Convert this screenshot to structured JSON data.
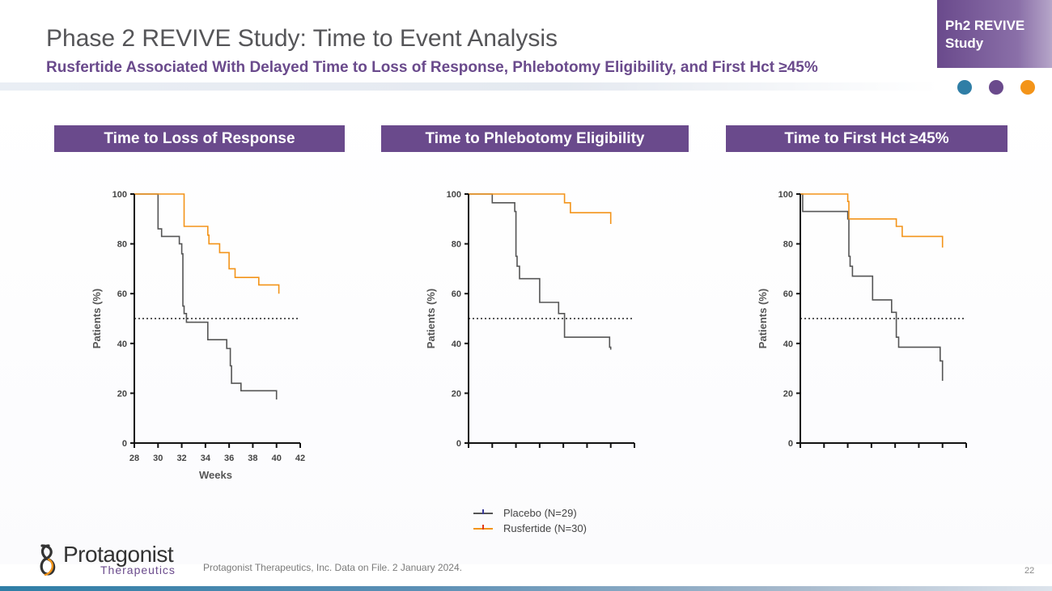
{
  "slide": {
    "title": "Phase 2 REVIVE Study: Time to Event Analysis",
    "subtitle": "Rusfertide Associated With Delayed Time to Loss of Response, Phlebotomy Eligibility, and First Hct ≥45%",
    "tag": "Ph2 REVIVE Study",
    "footnote": "Protagonist Therapeutics, Inc. Data on File. 2 January 2024.",
    "page_number": "22",
    "logo_name": "Protagonist",
    "logo_sub": "Therapeutics"
  },
  "colors": {
    "purple": "#6a4a8c",
    "placebo": "#555555",
    "rusfertide": "#f39419",
    "dot_blue": "#2f7ea6",
    "dot_purple": "#6a4a8c",
    "dot_orange": "#f39419"
  },
  "legend": [
    {
      "label": "Placebo (N=29)",
      "color": "#555555",
      "tick": "#3b3b9a"
    },
    {
      "label": "Rusfertide (N=30)",
      "color": "#f39419",
      "tick": "#e03b1c"
    }
  ],
  "chart_data": [
    {
      "type": "line",
      "title": "Time to Loss of Response",
      "xlabel": "Weeks",
      "ylabel": "Patients (%)",
      "xlim": [
        28,
        42
      ],
      "ylim": [
        0,
        100
      ],
      "xticks": [
        28,
        30,
        32,
        34,
        36,
        38,
        40,
        42
      ],
      "xtick_labels": [
        "28",
        "30",
        "32",
        "34",
        "36",
        "38",
        "40",
        "42"
      ],
      "yticks": [
        0,
        20,
        40,
        60,
        80,
        100
      ],
      "reference_y": 50,
      "series": [
        {
          "name": "Placebo (N=29)",
          "steps": [
            [
              28,
              100
            ],
            [
              30,
              100
            ],
            [
              30,
              86
            ],
            [
              30.3,
              86
            ],
            [
              30.3,
              83
            ],
            [
              31.8,
              83
            ],
            [
              31.8,
              80
            ],
            [
              32,
              80
            ],
            [
              32,
              76
            ],
            [
              32.1,
              76
            ],
            [
              32.1,
              55
            ],
            [
              32.2,
              55
            ],
            [
              32.2,
              52
            ],
            [
              32.4,
              52
            ],
            [
              32.4,
              48.5
            ],
            [
              34.2,
              48.5
            ],
            [
              34.2,
              41.5
            ],
            [
              35.8,
              41.5
            ],
            [
              35.8,
              38
            ],
            [
              36.1,
              38
            ],
            [
              36.1,
              31
            ],
            [
              36.2,
              31
            ],
            [
              36.2,
              24
            ],
            [
              37,
              24
            ],
            [
              37,
              21
            ],
            [
              40,
              21
            ],
            [
              40,
              17.5
            ]
          ]
        },
        {
          "name": "Rusfertide (N=30)",
          "steps": [
            [
              28,
              100
            ],
            [
              32.2,
              100
            ],
            [
              32.2,
              87
            ],
            [
              34.2,
              87
            ],
            [
              34.2,
              83.5
            ],
            [
              34.3,
              83.5
            ],
            [
              34.3,
              80
            ],
            [
              35.2,
              80
            ],
            [
              35.2,
              76.5
            ],
            [
              36,
              76.5
            ],
            [
              36,
              70
            ],
            [
              36.5,
              70
            ],
            [
              36.5,
              66.5
            ],
            [
              38.5,
              66.5
            ],
            [
              38.5,
              63.5
            ],
            [
              40.2,
              63.5
            ],
            [
              40.2,
              60
            ]
          ]
        }
      ]
    },
    {
      "type": "line",
      "title": "Time to Phlebotomy Eligibility",
      "xlabel": "",
      "ylabel": "Patients (%)",
      "xlim": [
        0,
        14
      ],
      "ylim": [
        0,
        100
      ],
      "xticks": [
        0,
        2,
        4,
        6,
        8,
        10,
        12,
        14
      ],
      "xtick_labels": [],
      "yticks": [
        0,
        20,
        40,
        60,
        80,
        100
      ],
      "reference_y": 50,
      "series": [
        {
          "name": "Placebo (N=29)",
          "steps": [
            [
              0,
              100
            ],
            [
              2,
              100
            ],
            [
              2,
              96.5
            ],
            [
              3.9,
              96.5
            ],
            [
              3.9,
              93
            ],
            [
              4,
              93
            ],
            [
              4,
              75
            ],
            [
              4.1,
              75
            ],
            [
              4.1,
              71
            ],
            [
              4.3,
              71
            ],
            [
              4.3,
              66
            ],
            [
              6,
              66
            ],
            [
              6,
              56.5
            ],
            [
              7.6,
              56.5
            ],
            [
              7.6,
              52
            ],
            [
              8.1,
              52
            ],
            [
              8.1,
              42.5
            ],
            [
              11.9,
              42.5
            ],
            [
              11.9,
              38.5
            ],
            [
              12,
              38.5
            ],
            [
              12,
              37.5
            ]
          ]
        },
        {
          "name": "Rusfertide (N=30)",
          "steps": [
            [
              0,
              100
            ],
            [
              8.1,
              100
            ],
            [
              8.1,
              96.5
            ],
            [
              8.6,
              96.5
            ],
            [
              8.6,
              92.5
            ],
            [
              12,
              92.5
            ],
            [
              12,
              88
            ]
          ]
        }
      ]
    },
    {
      "type": "line",
      "title": "Time to First Hct ≥45%",
      "xlabel": "",
      "ylabel": "Patients (%)",
      "xlim": [
        0,
        14
      ],
      "ylim": [
        0,
        100
      ],
      "xticks": [
        0,
        2,
        4,
        6,
        8,
        10,
        12,
        14
      ],
      "xtick_labels": [],
      "yticks": [
        0,
        20,
        40,
        60,
        80,
        100
      ],
      "reference_y": 50,
      "series": [
        {
          "name": "Placebo (N=29)",
          "steps": [
            [
              0,
              100
            ],
            [
              0.2,
              100
            ],
            [
              0.2,
              93
            ],
            [
              4,
              93
            ],
            [
              4,
              90
            ],
            [
              4.1,
              90
            ],
            [
              4.1,
              75
            ],
            [
              4.2,
              75
            ],
            [
              4.2,
              71
            ],
            [
              4.4,
              71
            ],
            [
              4.4,
              67
            ],
            [
              6.1,
              67
            ],
            [
              6.1,
              57.5
            ],
            [
              7.7,
              57.5
            ],
            [
              7.7,
              52.5
            ],
            [
              8.1,
              52.5
            ],
            [
              8.1,
              42.5
            ],
            [
              8.3,
              42.5
            ],
            [
              8.3,
              38.5
            ],
            [
              11.8,
              38.5
            ],
            [
              11.8,
              33
            ],
            [
              12,
              33
            ],
            [
              12,
              25
            ]
          ]
        },
        {
          "name": "Rusfertide (N=30)",
          "steps": [
            [
              0,
              100
            ],
            [
              4,
              100
            ],
            [
              4,
              97
            ],
            [
              4.1,
              97
            ],
            [
              4.1,
              90
            ],
            [
              8.1,
              90
            ],
            [
              8.1,
              87
            ],
            [
              8.6,
              87
            ],
            [
              8.6,
              83
            ],
            [
              12,
              83
            ],
            [
              12,
              78.5
            ]
          ]
        }
      ]
    }
  ]
}
